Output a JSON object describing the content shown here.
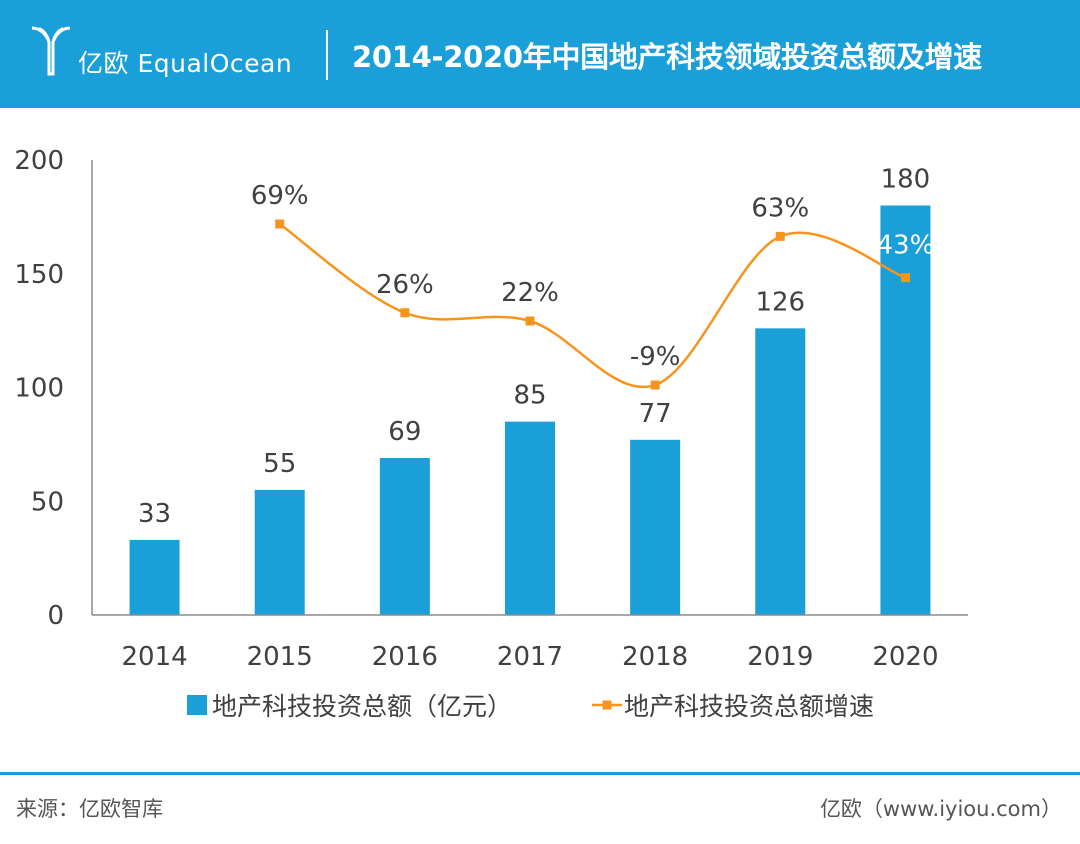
{
  "header": {
    "logo_text": "亿欧 EqualOcean",
    "title": "2014-2020年中国地产科技领域投资总额及增速"
  },
  "colors": {
    "header_bg": "#1a9fd8",
    "bar": "#1a9fd8",
    "line": "#f7941d",
    "axis": "#8c8c8c",
    "text": "#404040"
  },
  "chart_data": {
    "type": "bar",
    "title": "2014-2020年中国地产科技领域投资总额及增速",
    "categories": [
      "2014",
      "2015",
      "2016",
      "2017",
      "2018",
      "2019",
      "2020"
    ],
    "ylim": [
      0,
      200
    ],
    "yticks": [
      0,
      50,
      100,
      150,
      200
    ],
    "series": [
      {
        "name": "地产科技投资总额（亿元）",
        "type": "bar",
        "values": [
          33,
          55,
          69,
          85,
          77,
          126,
          180
        ],
        "labels": [
          "33",
          "55",
          "69",
          "85",
          "77",
          "126",
          "180"
        ]
      },
      {
        "name": "地产科技投资总额增速",
        "type": "line",
        "values": [
          null,
          69,
          26,
          22,
          -9,
          63,
          43
        ],
        "labels": [
          null,
          "69%",
          "26%",
          "22%",
          "-9%",
          "63%",
          "43%"
        ],
        "unit": "%"
      }
    ],
    "legend": "bottom"
  },
  "footer": {
    "source": "来源：亿欧智库",
    "site": "亿欧（www.iyiou.com）"
  }
}
